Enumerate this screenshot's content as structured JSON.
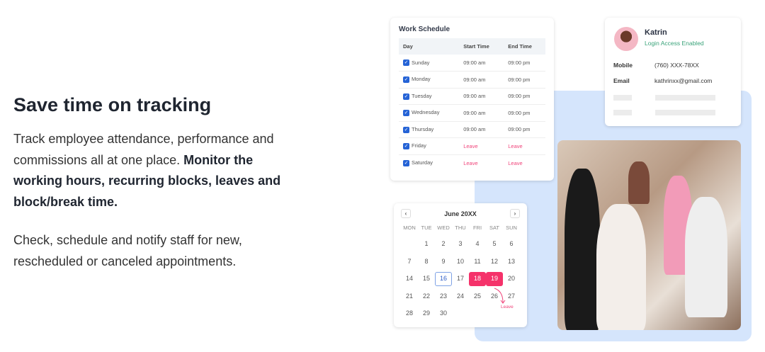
{
  "hero": {
    "title": "Save time on tracking",
    "p1_plain": "Track employee attendance, performance and commissions all at one place. ",
    "p1_bold": "Monitor the working hours, recurring blocks, leaves and block/break time.",
    "p2": "Check, schedule and notify staff for new, rescheduled or canceled appointments."
  },
  "schedule": {
    "title": "Work Schedule",
    "headers": [
      "Day",
      "Start Time",
      "End Time"
    ],
    "rows": [
      {
        "day": "Sunday",
        "start": "09:00 am",
        "end": "09:00 pm"
      },
      {
        "day": "Monday",
        "start": "09:00 am",
        "end": "09:00 pm"
      },
      {
        "day": "Tuesday",
        "start": "09:00 am",
        "end": "09:00 pm"
      },
      {
        "day": "Wednesday",
        "start": "09:00 am",
        "end": "09:00 pm"
      },
      {
        "day": "Thursday",
        "start": "09:00 am",
        "end": "09:00 pm"
      },
      {
        "day": "Friday",
        "start": "Leave",
        "end": "Leave"
      },
      {
        "day": "Saturday",
        "start": "Leave",
        "end": "Leave"
      }
    ]
  },
  "calendar": {
    "month": "June 20XX",
    "prev": "‹",
    "next": "›",
    "dow": [
      "MON",
      "TUE",
      "WED",
      "THU",
      "FRI",
      "SAT",
      "SUN"
    ],
    "first_offset": 1,
    "days": 30,
    "today": 16,
    "leave_days": [
      18,
      19
    ],
    "leave_label": "Leave"
  },
  "profile": {
    "name": "Katrin",
    "status": "Login Access Enabled",
    "mobile_label": "Mobile",
    "mobile": "(760) XXX-78XX",
    "email_label": "Email",
    "email": "kathrinxx@gmail.com"
  },
  "colors": {
    "accent": "#2563d6",
    "leave": "#f5326a",
    "status": "#3aa37a",
    "panel": "#d5e5fc"
  }
}
